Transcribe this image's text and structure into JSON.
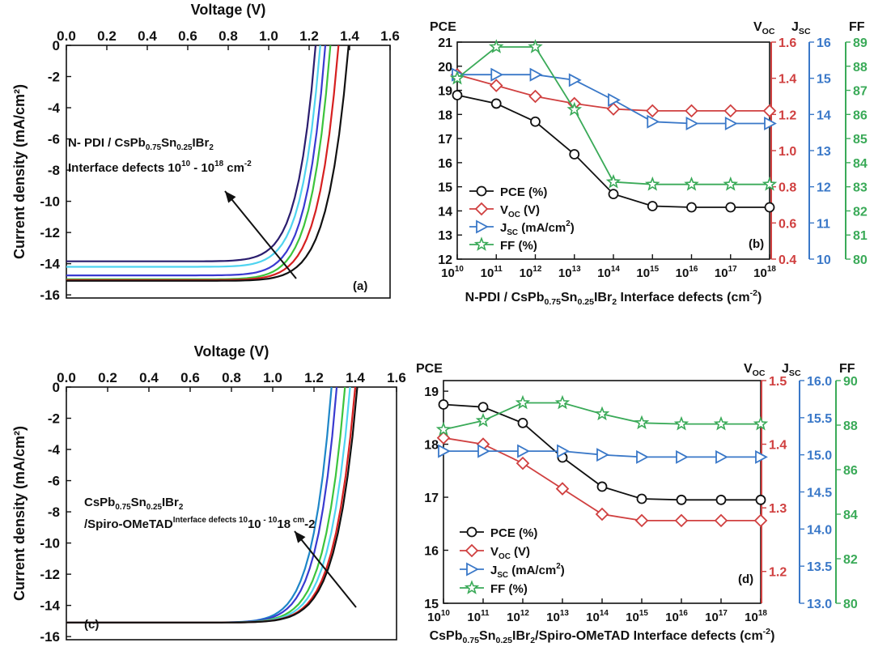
{
  "chart_data": [
    {
      "panel": "(a)",
      "type": "line",
      "xlabel": "Voltage (V)",
      "ylabel": "Current density (mA/cm²)",
      "xlim": [
        0,
        1.6
      ],
      "ylim": [
        -16.2,
        0
      ],
      "xticks": [
        "0.0",
        "0.2",
        "0.4",
        "0.6",
        "0.8",
        "1.0",
        "1.2",
        "1.4",
        "1.6"
      ],
      "yticks": [
        "0",
        "-2",
        "-4",
        "-6",
        "-8",
        "-10",
        "-12",
        "-14",
        "-16"
      ],
      "annotation": [
        "N- PDI / CsPb",
        "0.75",
        "Sn",
        "0.25",
        "IBr",
        "2",
        "Interface defects 10",
        "10",
        " - 10",
        "18",
        " cm",
        "-2"
      ],
      "series": [
        {
          "color": "#2a1d6e",
          "jsc": -13.85,
          "voc": 1.232
        },
        {
          "color": "#4fd4f0",
          "jsc": -14.2,
          "voc": 1.255
        },
        {
          "color": "#3a3ad0",
          "jsc": -14.75,
          "voc": 1.28
        },
        {
          "color": "#3cc43c",
          "jsc": -15.0,
          "voc": 1.305
        },
        {
          "color": "#d62020",
          "jsc": -15.05,
          "voc": 1.345
        },
        {
          "color": "#111111",
          "jsc": -15.1,
          "voc": 1.395
        }
      ]
    },
    {
      "panel": "(b)",
      "type": "line",
      "xlabel": [
        "N-PDI / CsPb",
        "0.75",
        "Sn",
        "0.25",
        "IBr",
        "2",
        " Interface defects (cm",
        "-2",
        ")"
      ],
      "x": [
        10,
        11,
        12,
        13,
        14,
        15,
        16,
        17,
        18
      ],
      "xtick_base": "10",
      "axes": {
        "pce": {
          "title": "PCE",
          "range": [
            12,
            21
          ],
          "ticks": [
            "12",
            "13",
            "14",
            "15",
            "16",
            "17",
            "18",
            "19",
            "20",
            "21"
          ],
          "color": "#111111"
        },
        "voc": {
          "title": [
            "V",
            "OC"
          ],
          "range": [
            0.4,
            1.6
          ],
          "ticks": [
            "0.4",
            "0.6",
            "0.8",
            "1.0",
            "1.2",
            "1.4",
            "1.6"
          ],
          "color": "#d04040"
        },
        "jsc": {
          "title": [
            "J",
            "SC"
          ],
          "range": [
            10,
            16
          ],
          "ticks": [
            "10",
            "11",
            "12",
            "13",
            "14",
            "15",
            "16"
          ],
          "color": "#3a78c8"
        },
        "ff": {
          "title": "FF",
          "range": [
            80,
            89
          ],
          "ticks": [
            "80",
            "81",
            "82",
            "83",
            "84",
            "85",
            "86",
            "87",
            "88",
            "89"
          ],
          "color": "#3aaa58"
        }
      },
      "legend": [
        [
          "PCE (%)"
        ],
        [
          "V",
          "OC",
          " (V)"
        ],
        [
          "J",
          "SC",
          " (mA/cm",
          "2",
          ")"
        ],
        [
          "FF (%)"
        ]
      ],
      "series": [
        {
          "key": "pce",
          "marker": "circle",
          "color": "#111111",
          "values": [
            18.8,
            18.45,
            17.7,
            16.35,
            14.7,
            14.2,
            14.15,
            14.15,
            14.15
          ]
        },
        {
          "key": "voc",
          "marker": "diamond",
          "color": "#d04040",
          "values": [
            1.42,
            1.36,
            1.3,
            1.26,
            1.23,
            1.22,
            1.22,
            1.22,
            1.22
          ]
        },
        {
          "key": "jsc",
          "marker": "triangle",
          "color": "#3a78c8",
          "values": [
            15.1,
            15.1,
            15.1,
            14.95,
            14.4,
            13.8,
            13.75,
            13.75,
            13.75
          ]
        },
        {
          "key": "ff",
          "marker": "star",
          "color": "#3aaa58",
          "values": [
            87.5,
            88.8,
            88.8,
            86.2,
            83.2,
            83.1,
            83.1,
            83.1,
            83.1
          ]
        }
      ]
    },
    {
      "panel": "(c)",
      "type": "line",
      "xlabel": "Voltage (V)",
      "ylabel": "Current density (mA/cm²)",
      "xlim": [
        0,
        1.6
      ],
      "ylim": [
        -16.2,
        0
      ],
      "xticks": [
        "0.0",
        "0.2",
        "0.4",
        "0.6",
        "0.8",
        "1.0",
        "1.2",
        "1.4",
        "1.6"
      ],
      "yticks": [
        "0",
        "-2",
        "-4",
        "-6",
        "-8",
        "-10",
        "-12",
        "-14",
        "-16"
      ],
      "annotation": [
        "CsPb",
        "0.75",
        "Sn",
        "0.25",
        "IBr",
        "2",
        "/Spiro-OMeTAD",
        "Interface defects 10",
        "10",
        " - 10",
        "18",
        " cm",
        "-2"
      ],
      "series": [
        {
          "color": "#1e86c8",
          "jsc": -15.1,
          "voc": 1.285
        },
        {
          "color": "#3a3ad0",
          "jsc": -15.1,
          "voc": 1.31
        },
        {
          "color": "#3cc43c",
          "jsc": -15.1,
          "voc": 1.35
        },
        {
          "color": "#4fd4f0",
          "jsc": -15.1,
          "voc": 1.375
        },
        {
          "color": "#d62020",
          "jsc": -15.1,
          "voc": 1.4
        },
        {
          "color": "#111111",
          "jsc": -15.1,
          "voc": 1.41
        }
      ]
    },
    {
      "panel": "(d)",
      "type": "line",
      "xlabel": [
        "CsPb",
        "0.75",
        "Sn",
        "0.25",
        "IBr",
        "2",
        "/Spiro-OMeTAD Interface defects (cm",
        "-2",
        ")"
      ],
      "x": [
        10,
        11,
        12,
        13,
        14,
        15,
        16,
        17,
        18
      ],
      "xtick_base": "10",
      "axes": {
        "pce": {
          "title": "PCE",
          "range": [
            15,
            19.2
          ],
          "ticks": [
            "15",
            "16",
            "17",
            "18",
            "19"
          ],
          "color": "#111111"
        },
        "voc": {
          "title": [
            "V",
            "OC"
          ],
          "range": [
            1.15,
            1.5
          ],
          "ticks": [
            "1.2",
            "1.3",
            "1.4",
            "1.5"
          ],
          "color": "#d04040"
        },
        "jsc": {
          "title": [
            "J",
            "SC"
          ],
          "range": [
            13.0,
            16.0
          ],
          "ticks": [
            "13.0",
            "13.5",
            "14.0",
            "14.5",
            "15.0",
            "15.5",
            "16.0"
          ],
          "color": "#3a78c8"
        },
        "ff": {
          "title": "FF",
          "range": [
            80,
            90
          ],
          "ticks": [
            "80",
            "82",
            "84",
            "86",
            "88",
            "90"
          ],
          "color": "#3aaa58"
        }
      },
      "legend": [
        [
          "PCE (%)"
        ],
        [
          "V",
          "OC",
          " (V)"
        ],
        [
          "J",
          "SC",
          " (mA/cm",
          "2",
          ")"
        ],
        [
          "FF (%)"
        ]
      ],
      "series": [
        {
          "key": "pce",
          "marker": "circle",
          "color": "#111111",
          "values": [
            18.75,
            18.7,
            18.4,
            17.75,
            17.2,
            16.97,
            16.95,
            16.95,
            16.95
          ]
        },
        {
          "key": "voc",
          "marker": "diamond",
          "color": "#d04040",
          "values": [
            1.41,
            1.4,
            1.37,
            1.33,
            1.29,
            1.28,
            1.28,
            1.28,
            1.28
          ]
        },
        {
          "key": "jsc",
          "marker": "triangle",
          "color": "#3a78c8",
          "values": [
            15.05,
            15.05,
            15.05,
            15.05,
            15.0,
            14.97,
            14.97,
            14.97,
            14.97
          ]
        },
        {
          "key": "ff",
          "marker": "star",
          "color": "#3aaa58",
          "values": [
            87.8,
            88.2,
            89.0,
            89.0,
            88.5,
            88.1,
            88.05,
            88.05,
            88.05
          ]
        }
      ]
    }
  ]
}
